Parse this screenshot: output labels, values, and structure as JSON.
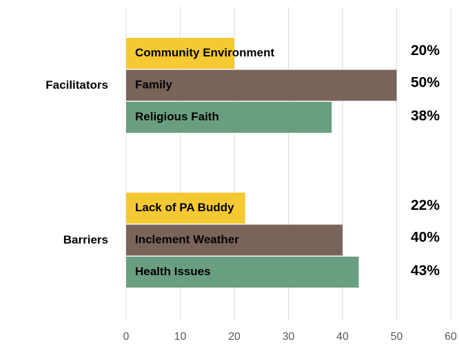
{
  "chart_data": {
    "type": "bar",
    "orientation": "horizontal",
    "groups": [
      {
        "name": "Facilitators",
        "bars": [
          {
            "label": "Community Environment",
            "value": 20,
            "value_label": "20%",
            "color": "#f5c933"
          },
          {
            "label": "Family",
            "value": 50,
            "value_label": "50%",
            "color": "#7a645a"
          },
          {
            "label": "Religious Faith",
            "value": 38,
            "value_label": "38%",
            "color": "#6a9e80"
          }
        ]
      },
      {
        "name": "Barriers",
        "bars": [
          {
            "label": "Lack of PA Buddy",
            "value": 22,
            "value_label": "22%",
            "color": "#f5c933"
          },
          {
            "label": "Inclement Weather",
            "value": 40,
            "value_label": "40%",
            "color": "#7a645a"
          },
          {
            "label": "Health Issues",
            "value": 43,
            "value_label": "43%",
            "color": "#6a9e80"
          }
        ]
      }
    ],
    "xlim": [
      0,
      60
    ],
    "xticks": [
      0,
      10,
      20,
      30,
      40,
      50,
      60
    ],
    "grid": true
  }
}
